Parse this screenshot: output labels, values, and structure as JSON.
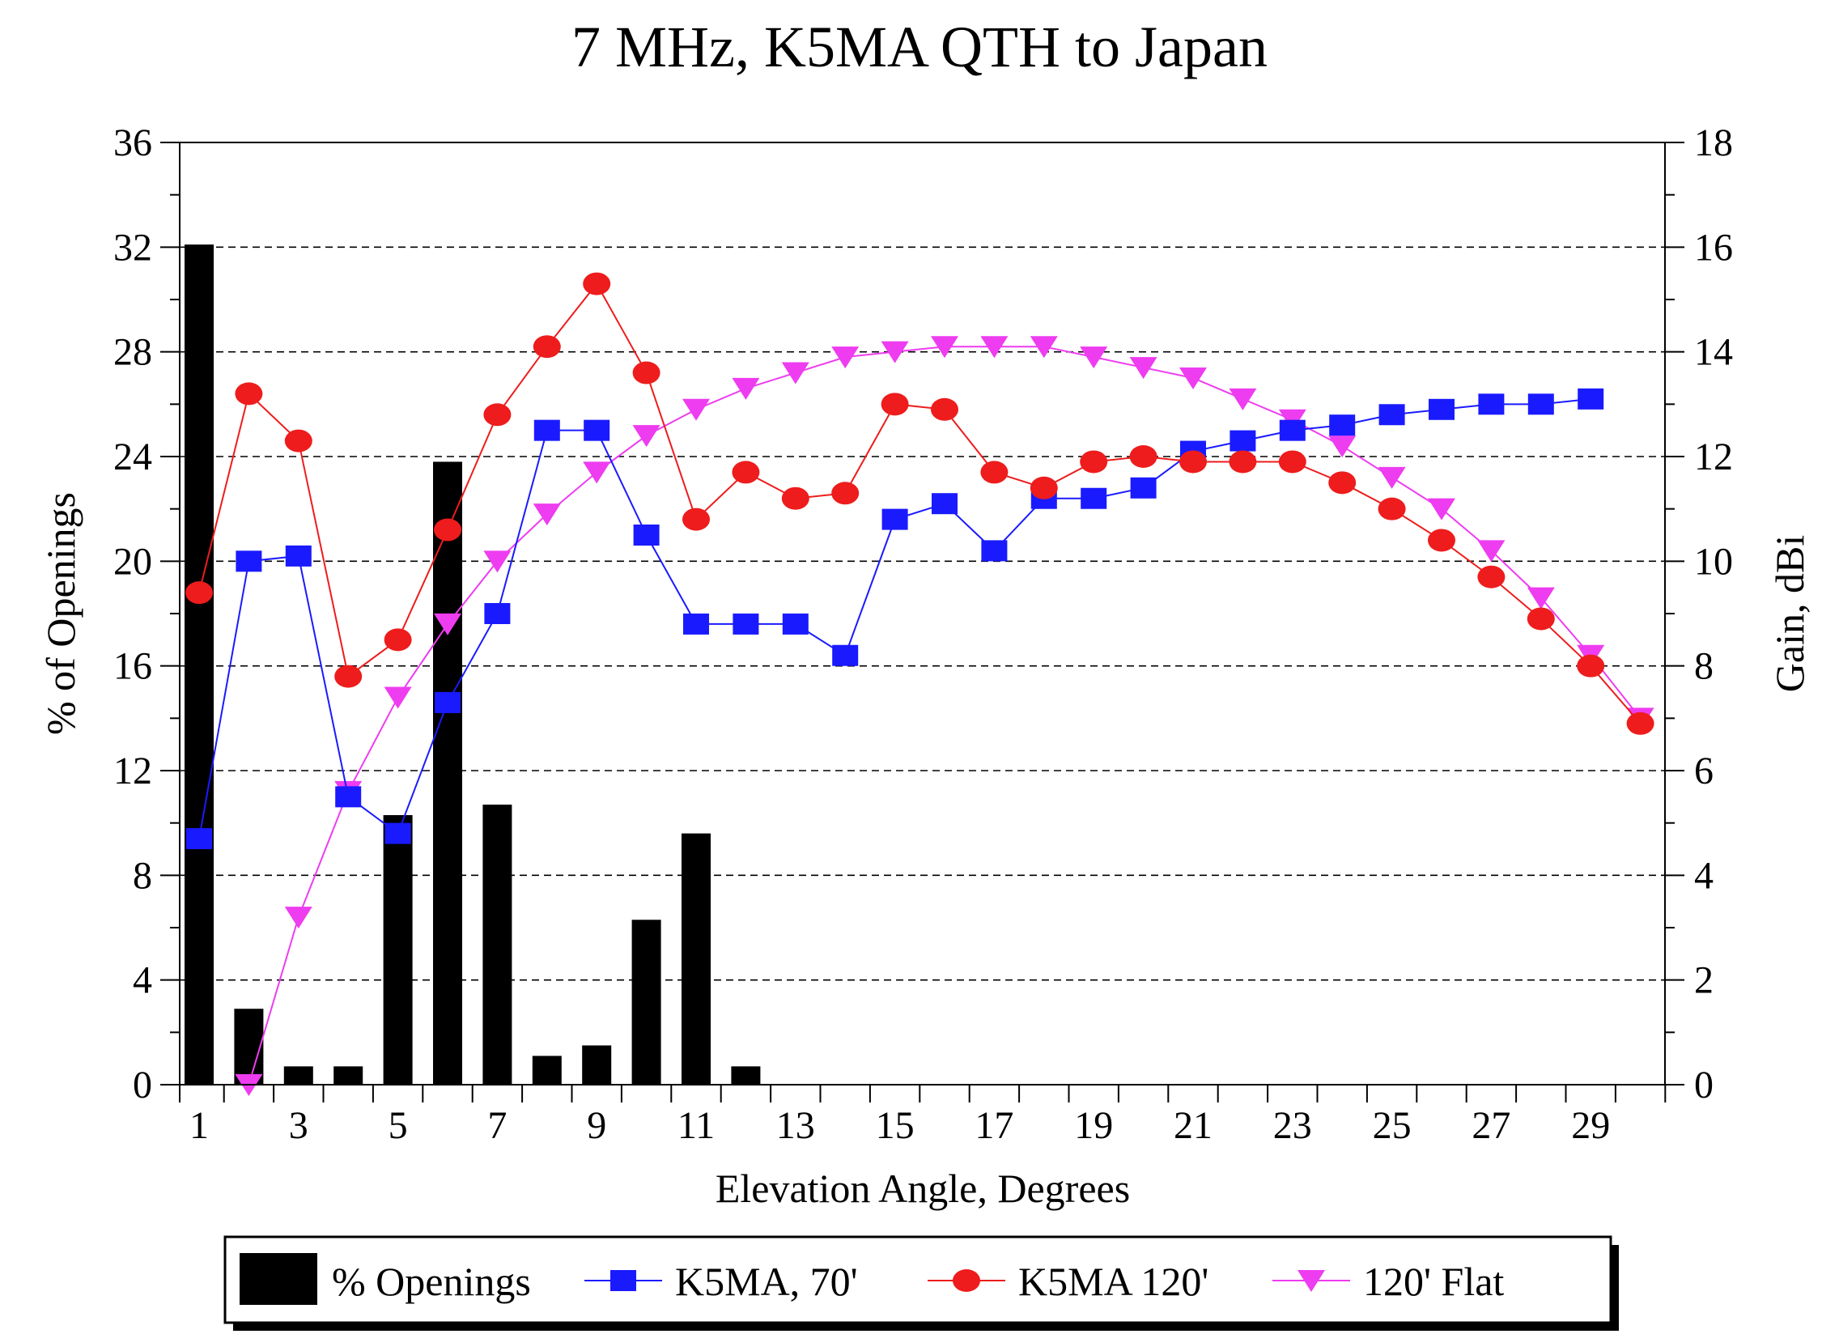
{
  "chart_data": {
    "type": "bar",
    "title": "7 MHz, K5MA QTH to Japan",
    "xlabel": "Elevation Angle, Degrees",
    "ylabel": "% of Openings",
    "y2label": "Gain, dBi",
    "x": [
      1,
      2,
      3,
      4,
      5,
      6,
      7,
      8,
      9,
      10,
      11,
      12,
      13,
      14,
      15,
      16,
      17,
      18,
      19,
      20,
      21,
      22,
      23,
      24,
      25,
      26,
      27,
      28,
      29,
      30
    ],
    "x_tick_labels": [
      "1",
      "3",
      "5",
      "7",
      "9",
      "11",
      "13",
      "15",
      "17",
      "19",
      "21",
      "23",
      "25",
      "27",
      "29"
    ],
    "x_tick_values": [
      1,
      3,
      5,
      7,
      9,
      11,
      13,
      15,
      17,
      19,
      21,
      23,
      25,
      27,
      29
    ],
    "ylim": [
      0,
      36
    ],
    "y_ticks": [
      "0",
      "4",
      "8",
      "12",
      "16",
      "20",
      "24",
      "28",
      "32",
      "36"
    ],
    "y2lim": [
      0,
      18
    ],
    "y2_ticks": [
      "0",
      "2",
      "4",
      "6",
      "8",
      "10",
      "12",
      "14",
      "16",
      "18"
    ],
    "grid": "horizontal dashed",
    "legend_position": "bottom",
    "series": [
      {
        "name": "% Openings",
        "kind": "bar",
        "axis": "left",
        "color": "#000000",
        "values": [
          32.1,
          2.9,
          0.7,
          0.7,
          10.3,
          23.8,
          10.7,
          1.1,
          1.5,
          6.3,
          9.6,
          0.7,
          0,
          0,
          0,
          0,
          0,
          0,
          0,
          0,
          0,
          0,
          0,
          0,
          0,
          0,
          0,
          0,
          0,
          0
        ]
      },
      {
        "name": "K5MA, 70'",
        "kind": "line",
        "marker": "square",
        "axis": "right",
        "color": "#1a1aff",
        "values": [
          4.7,
          10.0,
          10.1,
          5.5,
          4.8,
          7.3,
          9.0,
          12.5,
          12.5,
          10.5,
          8.8,
          8.8,
          8.8,
          8.2,
          10.8,
          11.1,
          10.2,
          11.2,
          11.2,
          11.4,
          12.1,
          12.3,
          12.5,
          12.6,
          12.8,
          12.9,
          13.0,
          13.0,
          13.1,
          null
        ]
      },
      {
        "name": "K5MA 120'",
        "kind": "line",
        "marker": "circle",
        "axis": "right",
        "color": "#ee1c1c",
        "values": [
          9.4,
          13.2,
          12.3,
          7.8,
          8.5,
          10.6,
          12.8,
          14.1,
          15.3,
          13.6,
          10.8,
          11.7,
          11.2,
          11.3,
          13.0,
          12.9,
          11.7,
          11.4,
          11.9,
          12.0,
          11.9,
          11.9,
          11.9,
          11.5,
          11.0,
          10.4,
          9.7,
          8.9,
          8.0,
          6.9
        ]
      },
      {
        "name": "120' Flat",
        "kind": "line",
        "marker": "triangle-down",
        "axis": "right",
        "color": "#ee3cf0",
        "values": [
          null,
          0.0,
          3.2,
          5.6,
          7.4,
          8.8,
          10.0,
          10.9,
          11.7,
          12.4,
          12.9,
          13.3,
          13.6,
          13.9,
          14.0,
          14.1,
          14.1,
          14.1,
          13.9,
          13.7,
          13.5,
          13.1,
          12.7,
          12.2,
          11.6,
          11.0,
          10.2,
          9.3,
          8.2,
          7.0
        ]
      }
    ]
  }
}
